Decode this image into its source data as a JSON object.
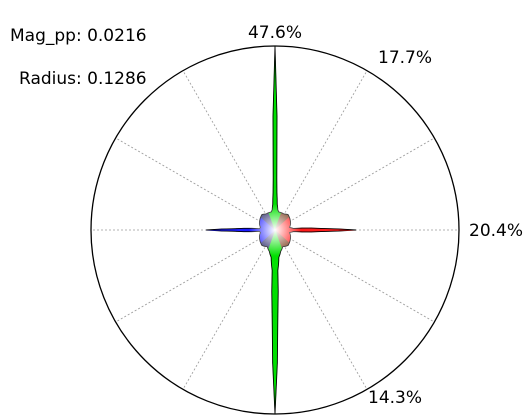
{
  "chart_data": {
    "type": "polar-rose",
    "title": "",
    "stats": [
      {
        "label": "Mag_pp: 0.0216"
      },
      {
        "label": "Radius: 0.1286"
      }
    ],
    "grid": true,
    "grid_angles_deg": [
      0,
      30,
      60,
      90,
      120,
      150,
      180,
      210,
      240,
      270,
      300,
      330
    ],
    "percent_labels": [
      {
        "angle_deg": 0,
        "text": "47.6%"
      },
      {
        "angle_deg": 30,
        "text": "17.7%"
      },
      {
        "angle_deg": 90,
        "text": "20.4%"
      },
      {
        "angle_deg": 150,
        "text": "14.3%"
      }
    ],
    "rose_profile": [
      {
        "angle_deg": 0,
        "r": 1.0
      },
      {
        "angle_deg": 1,
        "r": 0.62
      },
      {
        "angle_deg": 2,
        "r": 0.28
      },
      {
        "angle_deg": 3,
        "r": 0.2
      },
      {
        "angle_deg": 5,
        "r": 0.14
      },
      {
        "angle_deg": 8,
        "r": 0.11
      },
      {
        "angle_deg": 12,
        "r": 0.1
      },
      {
        "angle_deg": 20,
        "r": 0.1
      },
      {
        "angle_deg": 30,
        "r": 0.1
      },
      {
        "angle_deg": 40,
        "r": 0.11
      },
      {
        "angle_deg": 55,
        "r": 0.1
      },
      {
        "angle_deg": 70,
        "r": 0.09
      },
      {
        "angle_deg": 80,
        "r": 0.08
      },
      {
        "angle_deg": 85,
        "r": 0.1
      },
      {
        "angle_deg": 88,
        "r": 0.25
      },
      {
        "angle_deg": 90,
        "r": 0.44
      },
      {
        "angle_deg": 92,
        "r": 0.25
      },
      {
        "angle_deg": 95,
        "r": 0.1
      },
      {
        "angle_deg": 100,
        "r": 0.08
      },
      {
        "angle_deg": 110,
        "r": 0.09
      },
      {
        "angle_deg": 125,
        "r": 0.1
      },
      {
        "angle_deg": 140,
        "r": 0.11
      },
      {
        "angle_deg": 155,
        "r": 0.1
      },
      {
        "angle_deg": 165,
        "r": 0.12
      },
      {
        "angle_deg": 172,
        "r": 0.15
      },
      {
        "angle_deg": 176,
        "r": 0.22
      },
      {
        "angle_deg": 178,
        "r": 0.45
      },
      {
        "angle_deg": 180,
        "r": 1.0
      }
    ],
    "colors": {
      "up": "#00e000",
      "right": "#ff1a1a",
      "down": "#00e000",
      "left": "#1a1aff",
      "center": "#ffffff"
    }
  }
}
